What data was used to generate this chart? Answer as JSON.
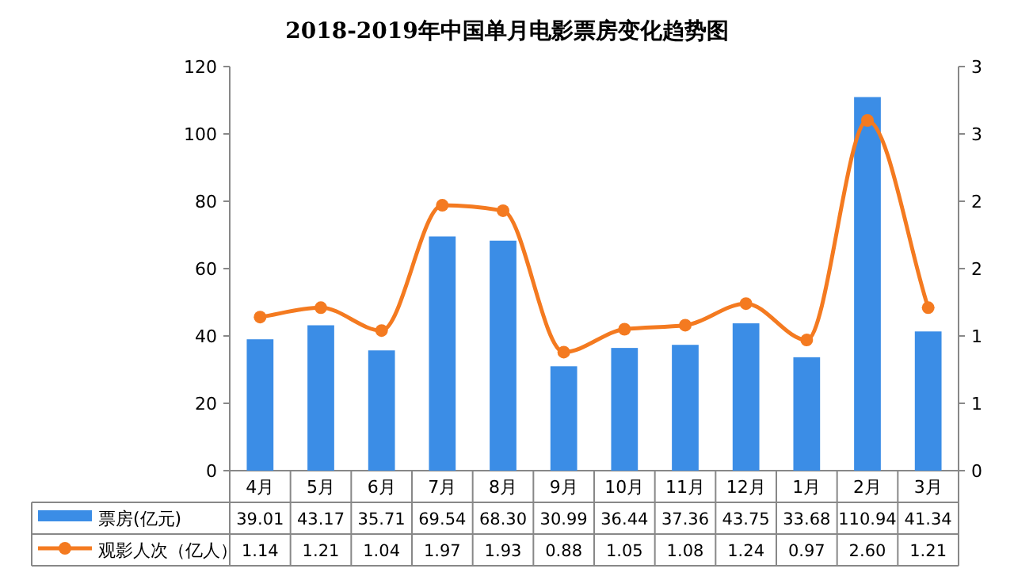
{
  "chart_data": {
    "type": "bar",
    "title": "2018-2019年中国单月电影票房变化趋势图",
    "categories": [
      "4月",
      "5月",
      "6月",
      "7月",
      "8月",
      "9月",
      "10月",
      "11月",
      "12月",
      "1月",
      "2月",
      "3月"
    ],
    "series": [
      {
        "name": "票房(亿元)",
        "color": "#3b8de6",
        "values": [
          39.01,
          43.17,
          35.71,
          69.54,
          68.3,
          30.99,
          36.44,
          37.36,
          43.75,
          33.68,
          110.94,
          41.34
        ],
        "value_labels": [
          "39.01",
          "43.17",
          "35.71",
          "69.54",
          "68.30",
          "30.99",
          "36.44",
          "37.36",
          "43.75",
          "33.68",
          "110.94",
          "41.34"
        ]
      },
      {
        "name": "观影人次（亿人）",
        "type": "line",
        "axis": "y2",
        "color": "#f47a20",
        "values": [
          1.14,
          1.21,
          1.04,
          1.97,
          1.93,
          0.88,
          1.05,
          1.08,
          1.24,
          0.97,
          2.6,
          1.21
        ],
        "value_labels": [
          "1.14",
          "1.21",
          "1.04",
          "1.97",
          "1.93",
          "0.88",
          "1.05",
          "1.08",
          "1.24",
          "0.97",
          "2.60",
          "1.21"
        ]
      }
    ],
    "ylim": [
      0,
      120
    ],
    "yticks": [
      0,
      20,
      40,
      60,
      80,
      100,
      120
    ],
    "y2lim": [
      0,
      3
    ],
    "y2ticks": [
      0,
      {
        "value": 0.5,
        "label": "1"
      },
      1,
      {
        "value": 1.5,
        "label": "2"
      },
      2,
      {
        "value": 2.5,
        "label": "3"
      },
      3
    ],
    "marker": "circle",
    "legend": "bottom",
    "grid": false
  }
}
